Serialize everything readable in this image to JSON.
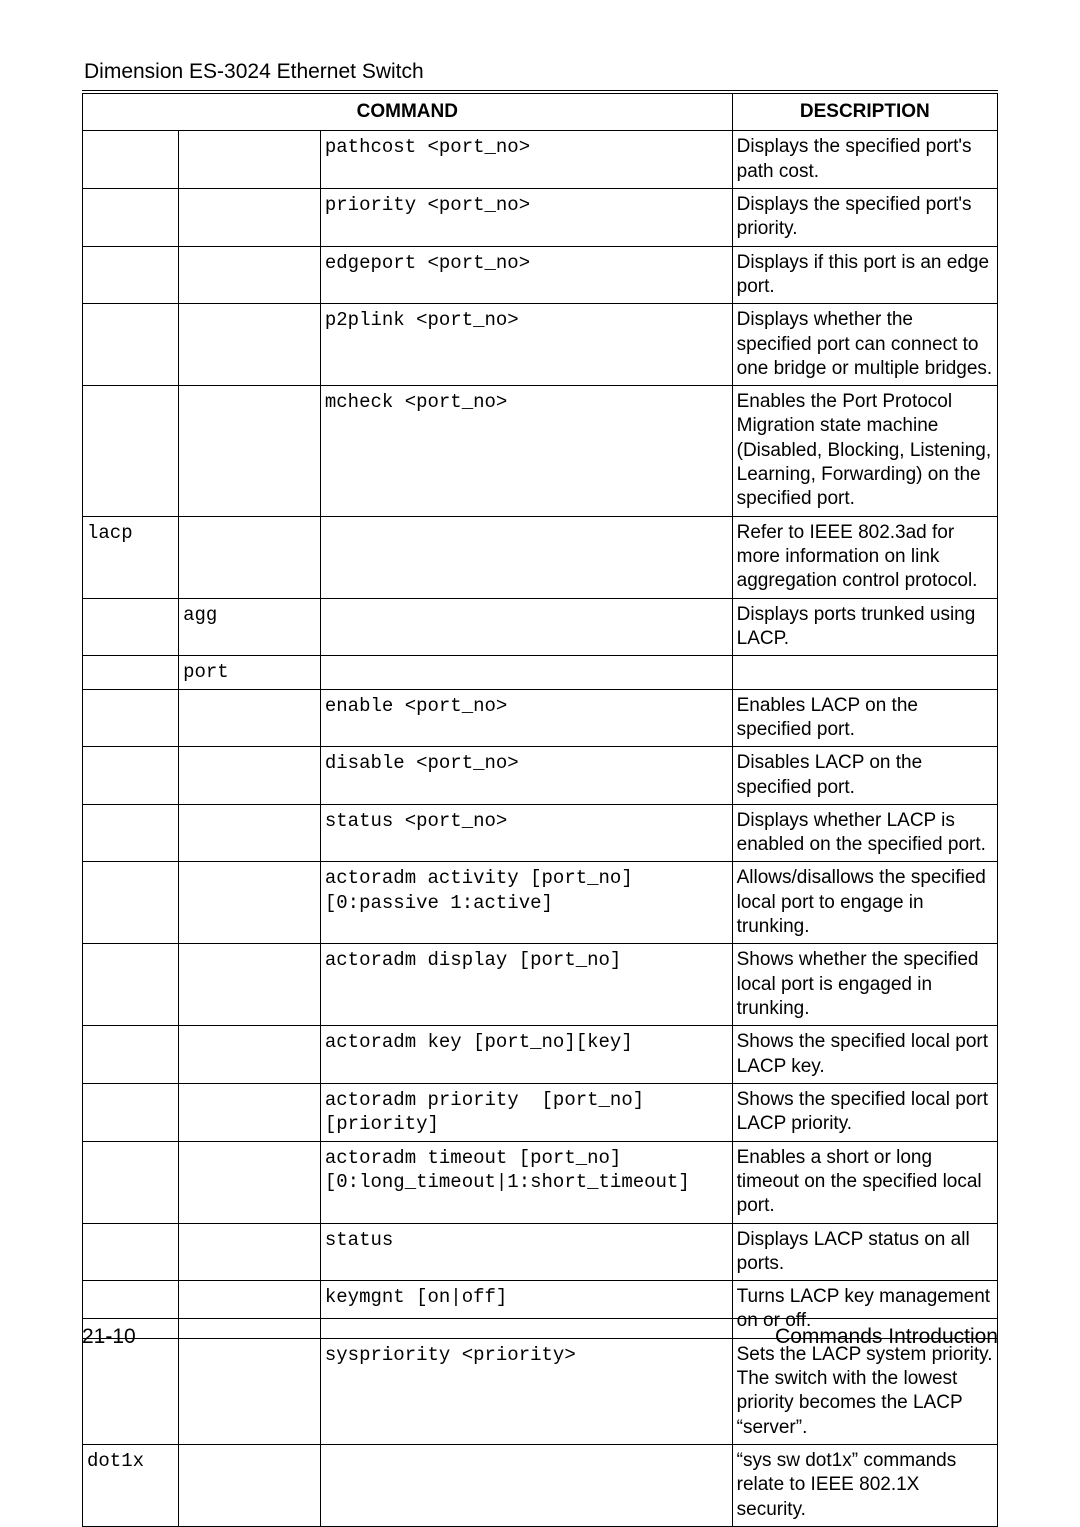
{
  "doc": {
    "title": "Dimension ES-3024 Ethernet Switch",
    "footer_left": "21-10",
    "footer_right": "Commands Introduction"
  },
  "table": {
    "header_command": "COMMAND",
    "header_description": "DESCRIPTION",
    "rows": [
      {
        "c1": "",
        "c2": "",
        "c3": "pathcost <port_no>",
        "desc": "Displays the specified port's path cost."
      },
      {
        "c1": "",
        "c2": "",
        "c3": "priority <port_no>",
        "desc": "Displays the specified port's priority."
      },
      {
        "c1": "",
        "c2": "",
        "c3": "edgeport <port_no>",
        "desc": "Displays if this port is an edge port."
      },
      {
        "c1": "",
        "c2": "",
        "c3": "p2plink <port_no>",
        "desc": "Displays whether the specified port can connect to one bridge or multiple bridges."
      },
      {
        "c1": "",
        "c2": "",
        "c3": "mcheck <port_no>",
        "desc": "Enables the Port Protocol Migration state machine (Disabled, Blocking, Listening, Learning, Forwarding) on the specified port."
      },
      {
        "c1": "lacp",
        "c2": "",
        "c3": "",
        "desc": "Refer to IEEE 802.3ad for more information on link aggregation control protocol."
      },
      {
        "c1": "",
        "c2": "agg",
        "c3": "",
        "desc": "Displays ports trunked using LACP."
      },
      {
        "c1": "",
        "c2": "port",
        "c3": "",
        "desc": ""
      },
      {
        "c1": "",
        "c2": "",
        "c3": "enable <port_no>",
        "desc": "Enables LACP on the specified port."
      },
      {
        "c1": "",
        "c2": "",
        "c3": "disable <port_no>",
        "desc": "Disables LACP on the specified port."
      },
      {
        "c1": "",
        "c2": "",
        "c3": "status <port_no>",
        "desc": "Displays whether LACP is enabled on the specified port."
      },
      {
        "c1": "",
        "c2": "",
        "c3": "actoradm activity [port_no] [0:passive 1:active]",
        "desc": "Allows/disallows the specified local port to engage in trunking."
      },
      {
        "c1": "",
        "c2": "",
        "c3": "actoradm display [port_no]",
        "desc": "Shows whether the specified local port is engaged in trunking."
      },
      {
        "c1": "",
        "c2": "",
        "c3": "actoradm key [port_no][key]",
        "desc": "Shows the specified local port LACP key."
      },
      {
        "c1": "",
        "c2": "",
        "c3": "actoradm priority  [port_no] [priority]",
        "desc": "Shows the specified local port LACP priority."
      },
      {
        "c1": "",
        "c2": "",
        "c3": "actoradm timeout [port_no] [0:long_timeout|1:short_timeout]",
        "desc": "Enables a short or long timeout on the specified local port."
      },
      {
        "c1": "",
        "c2": "",
        "c3": "status",
        "desc": "Displays LACP status on all ports."
      },
      {
        "c1": "",
        "c2": "",
        "c3": "keymgnt [on|off]",
        "desc": "Turns LACP key management on or off."
      },
      {
        "c1": "",
        "c2": "",
        "c3": "syspriority <priority>",
        "desc": "Sets the LACP system priority. The switch with the lowest priority becomes the LACP “server”."
      },
      {
        "c1": "dot1x",
        "c2": "",
        "c3": "",
        "desc": "“sys sw dot1x” commands relate to IEEE 802.1X security."
      }
    ]
  }
}
